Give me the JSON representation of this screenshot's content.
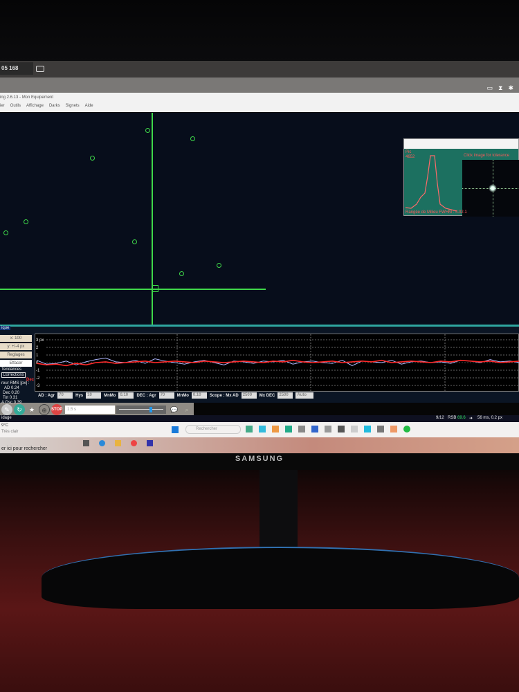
{
  "browser": {
    "address": "05 168"
  },
  "app": {
    "title": "ing 2.6.13 - Mon Equipement",
    "menu": [
      "ier",
      "Outils",
      "Affichage",
      "Darks",
      "Signets",
      "Aide"
    ]
  },
  "profile": {
    "label": "Pic",
    "value": "4652",
    "zoom_hint": "Click image for tolerance",
    "fwhm": "Rangée de Milieu FWHM : 4.02.1"
  },
  "panel": {
    "title": "ique",
    "scale": "x: 100",
    "yscale": "y: +/-4 px",
    "settings": "Reglages",
    "clear": "Effacer",
    "trends": "Tendances",
    "corrections": "Corrections",
    "dec_label": "Dec",
    "rms_title": "reur RMS [px] :",
    "rms": [
      {
        "k": "AD",
        "v": "0.24"
      },
      {
        "k": "Dec",
        "v": "0.20"
      },
      {
        "k": "Tot",
        "v": "0.31"
      },
      {
        "k": "A Osc",
        "v": "0.39"
      }
    ],
    "y_ticks": [
      "3 px",
      "2",
      "1",
      "0",
      "-1",
      "-2",
      "-3"
    ]
  },
  "graph": {
    "ra_color": "#b0b8ff",
    "dec_color": "#ff2a2a",
    "ra": [
      0.3,
      -0.2,
      -0.1,
      0.2,
      -0.3,
      0.1,
      0.4,
      0.6,
      0.1,
      0,
      0.3,
      -0.1,
      0.5,
      0.2,
      0,
      -0.2,
      0.1,
      0.3,
      0,
      -0.3,
      0.2,
      0.1,
      -0.1,
      0.2,
      0.1,
      0.3,
      -0.2,
      0.1,
      0.2,
      0,
      -0.1,
      0.3,
      -0.4,
      0.2,
      0.1,
      0,
      0.3,
      -0.2,
      0.1,
      0.2,
      0,
      0.1,
      -0.1,
      0.3,
      0.2,
      0,
      0.4,
      0.1,
      0.2,
      0
    ],
    "dec": [
      -0.1,
      -0.3,
      -0.2,
      -0.4,
      -0.1,
      -0.3,
      0,
      0.1,
      -0.1,
      0,
      0.1,
      0.2,
      0,
      0.1,
      0.2,
      0.1,
      0,
      0.2,
      0.1,
      0,
      0.1,
      0.2,
      0.1,
      0,
      0.2,
      0.1,
      0.3,
      0.1,
      0,
      0.1,
      0.2,
      0,
      0.1,
      0.2,
      0.1,
      0.3,
      0,
      0.1,
      0.2,
      0.1,
      0,
      0.2,
      0.1,
      0.3,
      0.2,
      0.1,
      0.2,
      0,
      0.1,
      0.2
    ]
  },
  "params": {
    "ra_agr": "AD : Agr",
    "ra_agr_v": "70",
    "hys": "Hys",
    "hys_v": "10",
    "minmo": "MnMo",
    "minmo_v": "0.10",
    "dec_agr": "DEC : Agr",
    "dec_agr_v": "70",
    "minmo2": "MnMo",
    "minmo2_v": "0.10",
    "scope_ra": "Scope : Mx AD",
    "scope_ra_v": "2500",
    "mx_dec": "Mx DEC",
    "mx_dec_v": "2500",
    "mode": "Auto"
  },
  "toolbar": {
    "exposure": "1.5 s",
    "stop": "STOP"
  },
  "status": {
    "frames": "9/12",
    "snr_label": "RSB",
    "snr": "69.6",
    "guide": "56 ms, 0.2 px",
    "left": "idage"
  },
  "taskbar": {
    "weather_temp": "9°C",
    "weather_desc": "Très clair",
    "search_placeholder": "er ici pour rechercher",
    "search_box": "Rechercher"
  },
  "monitor": {
    "brand": "SAMSUNG"
  }
}
